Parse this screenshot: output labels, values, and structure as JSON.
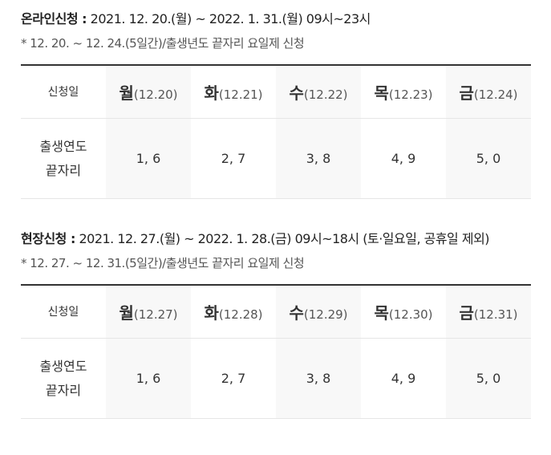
{
  "sections": [
    {
      "label": "온라인신청 :",
      "text": "2021. 12. 20.(월) ~ 2022. 1. 31.(월) 09시~23시",
      "note": "* 12. 20. ~ 12. 24.(5일간)/출생년도 끝자리 요일제 신청",
      "table": {
        "header_label": "신청일",
        "days": [
          {
            "day": "월",
            "date": "(12.20)"
          },
          {
            "day": "화",
            "date": "(12.21)"
          },
          {
            "day": "수",
            "date": "(12.22)"
          },
          {
            "day": "목",
            "date": "(12.23)"
          },
          {
            "day": "금",
            "date": "(12.24)"
          }
        ],
        "row_label": [
          "출생연도",
          "끝자리"
        ],
        "values": [
          "1, 6",
          "2, 7",
          "3, 8",
          "4, 9",
          "5, 0"
        ]
      }
    },
    {
      "label": "현장신청 :",
      "text": "2021. 12. 27.(월) ~ 2022. 1. 28.(금) 09시~18시 (토·일요일, 공휴일 제외)",
      "note": "* 12. 27. ~ 12. 31.(5일간)/출생년도 끝자리 요일제 신청",
      "table": {
        "header_label": "신청일",
        "days": [
          {
            "day": "월",
            "date": "(12.27)"
          },
          {
            "day": "화",
            "date": "(12.28)"
          },
          {
            "day": "수",
            "date": "(12.29)"
          },
          {
            "day": "목",
            "date": "(12.30)"
          },
          {
            "day": "금",
            "date": "(12.31)"
          }
        ],
        "row_label": [
          "출생연도",
          "끝자리"
        ],
        "values": [
          "1, 6",
          "2, 7",
          "3, 8",
          "4, 9",
          "5, 0"
        ]
      }
    }
  ]
}
